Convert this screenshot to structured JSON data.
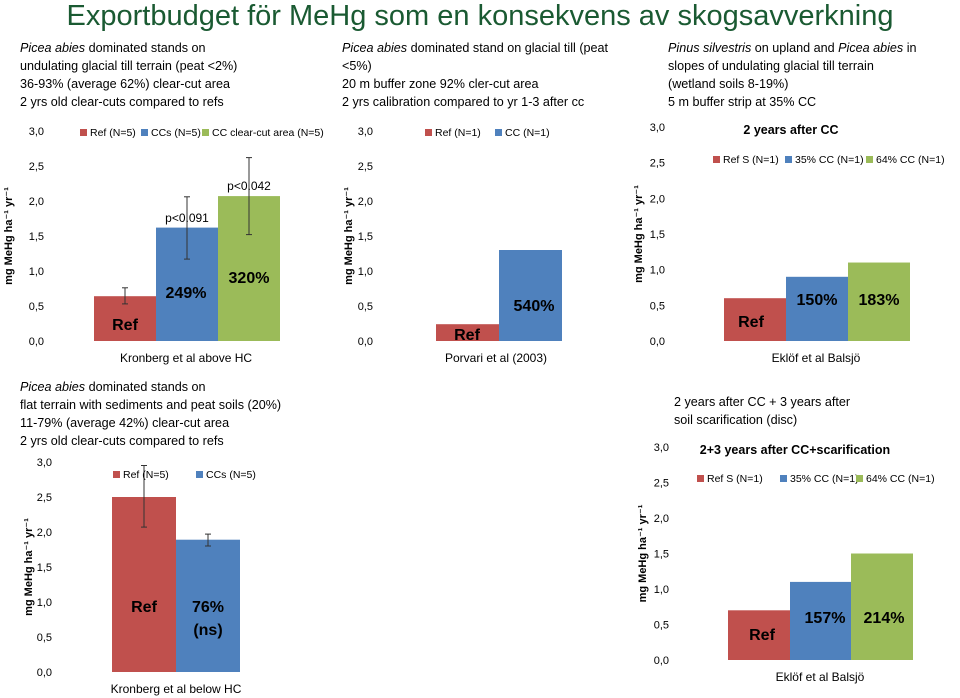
{
  "title": "Exportbudget för MeHg som en konsekvens av skogsavverkning",
  "panels": {
    "p1": {
      "lines": [
        {
          "italic": "Picea abies",
          "rest": " dominated stands on"
        },
        {
          "italic": "",
          "rest": "undulating glacial till terrain (peat <2%)"
        },
        {
          "italic": "",
          "rest": "36-93% (average 62%) clear-cut area"
        },
        {
          "italic": "",
          "rest": "2 yrs old clear-cuts compared to refs"
        }
      ]
    },
    "p2": {
      "lines": [
        {
          "italic": "Picea abies",
          "rest": " dominated stand on glacial till (peat"
        },
        {
          "italic": "",
          "rest": "<5%)"
        },
        {
          "italic": "",
          "rest": "20 m buffer zone 92% cler-cut area"
        },
        {
          "italic": "",
          "rest": "2 yrs calibration compared to yr 1-3 after cc"
        }
      ]
    },
    "p3": {
      "lines": [
        {
          "italic": "Pinus silvestris",
          "rest": " on upland and "
        },
        {
          "italic": "",
          "rest": "slopes of undulating glacial till terrain"
        },
        {
          "italic": "",
          "rest": "(wetland soils 8-19%)"
        },
        {
          "italic": "",
          "rest": "5 m buffer strip at 35% CC"
        }
      ],
      "line0_extra_italic": "Picea abies",
      "line0_tail": " in"
    },
    "p4": {
      "lines": [
        {
          "italic": "Picea abies",
          "rest": " dominated stands on"
        },
        {
          "italic": "",
          "rest": "flat terrain with sediments and peat soils (20%)"
        },
        {
          "italic": "",
          "rest": "11-79% (average 42%) clear-cut area"
        },
        {
          "italic": "",
          "rest": "2 yrs old clear-cuts compared to refs"
        }
      ]
    },
    "p5": {
      "lines": [
        {
          "italic": "",
          "rest": "2 years after CC + 3 years after"
        },
        {
          "italic": "",
          "rest": "soil scarification (disc)"
        }
      ]
    }
  },
  "colors": {
    "red": "#c0504d",
    "blue": "#4f81bd",
    "green": "#9bbb59",
    "title": "#1a5a32"
  },
  "chart_data": [
    {
      "id": "c1",
      "type": "bar",
      "title": "",
      "xlabel": "Kronberg et al above HC",
      "ylabel": "mg MeHg ha-1 yr-1",
      "ylim": [
        0,
        3
      ],
      "yticks": [
        "0,0",
        "0,5",
        "1,0",
        "1,5",
        "2,0",
        "2,5",
        "3,0"
      ],
      "series": [
        {
          "name": "Ref (N=5)",
          "value": 0.64,
          "err": [
            0.53,
            0.76
          ],
          "color": "red",
          "bar_label": "Ref"
        },
        {
          "name": "CCs (N=5)",
          "value": 1.62,
          "err": [
            1.17,
            2.06
          ],
          "color": "blue",
          "bar_label": "249%",
          "p_label": "p<0.091"
        },
        {
          "name": "CC clear-cut area (N=5)",
          "value": 2.07,
          "err": [
            1.52,
            2.62
          ],
          "color": "green",
          "bar_label": "320%",
          "p_label": "p<0.042"
        }
      ]
    },
    {
      "id": "c2",
      "type": "bar",
      "title": "",
      "xlabel": "Porvari et al (2003)",
      "ylabel": "mg MeHg ha-1 yr-1",
      "ylim": [
        0,
        3
      ],
      "yticks": [
        "0,0",
        "0,5",
        "1,0",
        "1,5",
        "2,0",
        "2,5",
        "3,0"
      ],
      "series": [
        {
          "name": "Ref (N=1)",
          "value": 0.24,
          "color": "red",
          "bar_label": "Ref"
        },
        {
          "name": "CC (N=1)",
          "value": 1.3,
          "color": "blue",
          "bar_label": "540%"
        }
      ]
    },
    {
      "id": "c3",
      "type": "bar",
      "title": "2 years after CC",
      "xlabel": "Eklöf et al Balsjö",
      "ylabel": "mg MeHg ha-1 yr-1",
      "ylim": [
        0,
        3
      ],
      "yticks": [
        "0,0",
        "0,5",
        "1,0",
        "1,5",
        "2,0",
        "2,5",
        "3,0"
      ],
      "series": [
        {
          "name": "Ref S (N=1)",
          "value": 0.6,
          "color": "red",
          "bar_label": "Ref"
        },
        {
          "name": "35% CC (N=1)",
          "value": 0.9,
          "color": "blue",
          "bar_label": "150%"
        },
        {
          "name": "64% CC (N=1)",
          "value": 1.1,
          "color": "green",
          "bar_label": "183%"
        }
      ]
    },
    {
      "id": "c4",
      "type": "bar",
      "title": "",
      "xlabel": "Kronberg et al below HC",
      "ylabel": "mg MeHg ha-1 yr-1",
      "ylim": [
        0,
        3
      ],
      "yticks": [
        "0,0",
        "0,5",
        "1,0",
        "1,5",
        "2,0",
        "2,5",
        "3,0"
      ],
      "series": [
        {
          "name": "Ref (N=5)",
          "value": 2.5,
          "err": [
            2.07,
            2.95
          ],
          "color": "red",
          "bar_label": "Ref"
        },
        {
          "name": "CCs (N=5)",
          "value": 1.89,
          "err": [
            1.8,
            1.97
          ],
          "color": "blue",
          "bar_label": "76%",
          "bar_label2": "(ns)"
        }
      ]
    },
    {
      "id": "c5",
      "type": "bar",
      "title": "2+3 years after CC+scarification",
      "xlabel": "Eklöf et al Balsjö",
      "ylabel": "mg MeHg ha-1 yr-1",
      "ylim": [
        0,
        3
      ],
      "yticks": [
        "0,0",
        "0,5",
        "1,0",
        "1,5",
        "2,0",
        "2,5",
        "3,0"
      ],
      "series": [
        {
          "name": "Ref S (N=1)",
          "value": 0.7,
          "color": "red",
          "bar_label": "Ref"
        },
        {
          "name": "35% CC (N=1)",
          "value": 1.1,
          "color": "blue",
          "bar_label": "157%"
        },
        {
          "name": "64% CC (N=1)",
          "value": 1.5,
          "color": "green",
          "bar_label": "214%"
        }
      ]
    }
  ]
}
